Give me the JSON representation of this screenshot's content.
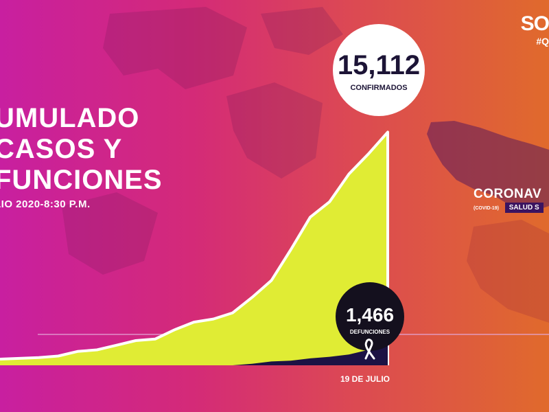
{
  "header": {
    "title_lines": [
      "UMULADO",
      "CASOS Y",
      "FUNCIONES"
    ],
    "date": "LIO 2020-8:30 P.M."
  },
  "brand": {
    "logo": "SO",
    "hashtag": "#Q"
  },
  "side_panel": {
    "title": "CORONAV",
    "tag": "(COVID-19)",
    "source": "SALUD S"
  },
  "colors": {
    "confirmed": "#e0ec34",
    "deaths": "#1c1244",
    "outline": "#ffffff"
  },
  "chart_data": {
    "type": "area",
    "end_label": "19 DE JULIO",
    "series": [
      {
        "name": "CONFIRMADOS",
        "value_label": "15,112",
        "values": [
          400,
          450,
          500,
          600,
          900,
          1000,
          1300,
          1600,
          1700,
          2300,
          2800,
          3000,
          3400,
          4400,
          5500,
          7500,
          9600,
          10600,
          12400,
          13700,
          15112
        ]
      },
      {
        "name": "DEFUNCIONES",
        "value_label": "1,466",
        "values": [
          0,
          0,
          0,
          0,
          0,
          0,
          0,
          0,
          0,
          0,
          0,
          0,
          0,
          100,
          250,
          300,
          450,
          550,
          700,
          1000,
          1466
        ]
      }
    ],
    "ylim": [
      0,
      16200
    ]
  }
}
